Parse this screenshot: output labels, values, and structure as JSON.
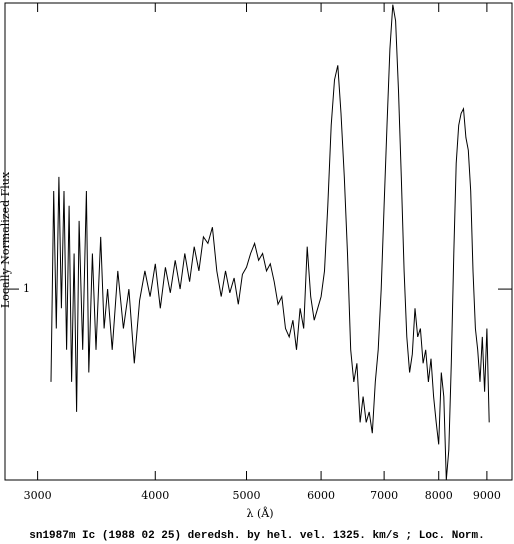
{
  "chart_data": {
    "type": "line",
    "title": "sn1987m Ic (1988 02 25) deredsh. by hel. vel.  1325. km/s ;  Loc. Norm.",
    "x_label": "λ (Å)",
    "y_label": "Locally Normalized Flux",
    "x": [
      3100,
      3120,
      3140,
      3160,
      3180,
      3200,
      3220,
      3240,
      3260,
      3280,
      3300,
      3320,
      3350,
      3380,
      3400,
      3430,
      3460,
      3500,
      3530,
      3560,
      3600,
      3650,
      3700,
      3750,
      3800,
      3850,
      3900,
      3950,
      4000,
      4050,
      4100,
      4150,
      4200,
      4250,
      4300,
      4350,
      4400,
      4450,
      4500,
      4550,
      4600,
      4650,
      4700,
      4750,
      4800,
      4850,
      4900,
      4950,
      5000,
      5050,
      5100,
      5150,
      5200,
      5250,
      5300,
      5350,
      5400,
      5450,
      5500,
      5550,
      5600,
      5650,
      5700,
      5750,
      5800,
      5850,
      5900,
      5950,
      6000,
      6050,
      6100,
      6150,
      6200,
      6250,
      6300,
      6350,
      6400,
      6450,
      6500,
      6550,
      6600,
      6650,
      6700,
      6750,
      6800,
      6850,
      6900,
      6950,
      7000,
      7050,
      7100,
      7150,
      7200,
      7250,
      7300,
      7350,
      7400,
      7450,
      7500,
      7550,
      7600,
      7650,
      7700,
      7750,
      7800,
      7850,
      7900,
      7950,
      8000,
      8050,
      8100,
      8150,
      8200,
      8250,
      8300,
      8350,
      8400,
      8450,
      8500,
      8550,
      8600,
      8650,
      8700,
      8750,
      8800,
      8850,
      8900,
      8950,
      9000,
      9050
    ],
    "values": [
      0.78,
      1.3,
      0.9,
      1.35,
      0.95,
      1.3,
      0.85,
      1.25,
      0.78,
      1.1,
      0.72,
      1.2,
      0.85,
      1.3,
      0.8,
      1.1,
      0.85,
      1.15,
      0.9,
      1.0,
      0.85,
      1.05,
      0.9,
      1.0,
      0.82,
      0.97,
      1.05,
      0.98,
      1.07,
      0.95,
      1.06,
      0.99,
      1.08,
      1.0,
      1.1,
      1.02,
      1.12,
      1.05,
      1.15,
      1.13,
      1.18,
      1.05,
      0.98,
      1.05,
      0.99,
      1.03,
      0.96,
      1.04,
      1.06,
      1.1,
      1.13,
      1.08,
      1.1,
      1.05,
      1.07,
      1.02,
      0.96,
      0.98,
      0.9,
      0.88,
      0.92,
      0.85,
      0.95,
      0.9,
      1.12,
      0.98,
      0.92,
      0.95,
      0.98,
      1.05,
      1.25,
      1.55,
      1.75,
      1.82,
      1.6,
      1.35,
      1.1,
      0.85,
      0.78,
      0.82,
      0.7,
      0.75,
      0.7,
      0.72,
      0.68,
      0.78,
      0.85,
      1.0,
      1.25,
      1.55,
      1.9,
      2.14,
      2.05,
      1.7,
      1.35,
      1.05,
      0.88,
      0.8,
      0.84,
      0.95,
      0.88,
      0.9,
      0.82,
      0.85,
      0.78,
      0.83,
      0.75,
      0.7,
      0.66,
      0.8,
      0.75,
      0.6,
      0.65,
      0.82,
      1.1,
      1.4,
      1.55,
      1.6,
      1.62,
      1.5,
      1.45,
      1.3,
      1.05,
      0.9,
      0.85,
      0.78,
      0.88,
      0.76,
      0.9,
      0.7
    ],
    "color": "#000000",
    "xlim": [
      2770,
      9570
    ],
    "xticks": [
      3000,
      4000,
      5000,
      6000,
      7000,
      8000,
      9000
    ],
    "xscale": "log",
    "ylim": [
      0.6,
      2.15
    ],
    "yticks": [
      1
    ],
    "yscale": "log"
  }
}
